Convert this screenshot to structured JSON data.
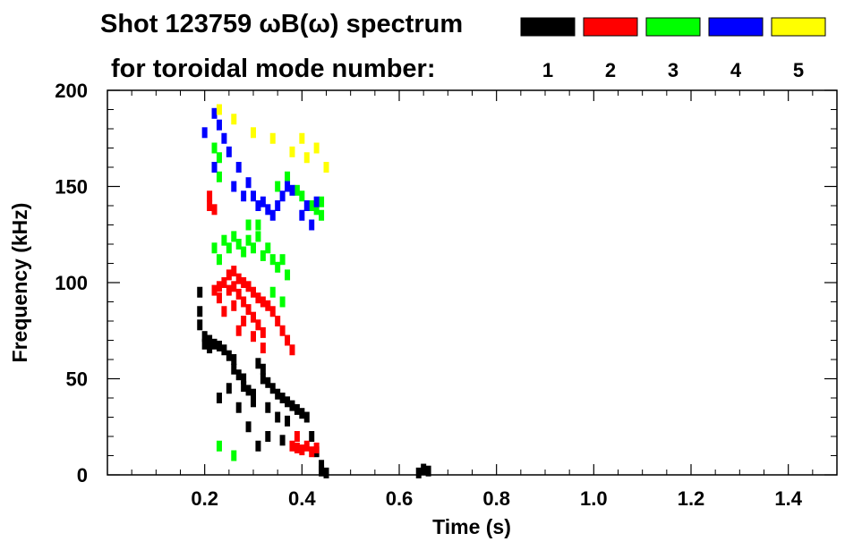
{
  "chart_data": {
    "type": "heatmap",
    "title": "Shot 123759 ωB(ω) spectrum",
    "subtitle": "for toroidal mode number:",
    "xlabel": "Time (s)",
    "ylabel": "Frequency (kHz)",
    "xlim": [
      0.0,
      1.5
    ],
    "ylim": [
      0,
      200
    ],
    "x_ticks": [
      "0.2",
      "0.4",
      "0.6",
      "0.8",
      "1.0",
      "1.2",
      "1.4"
    ],
    "x_tick_values": [
      0.2,
      0.4,
      0.6,
      0.8,
      1.0,
      1.2,
      1.4
    ],
    "y_ticks": [
      "0",
      "50",
      "100",
      "150",
      "200"
    ],
    "y_tick_values": [
      0,
      50,
      100,
      150,
      200
    ],
    "legend_placement": "top",
    "grid": false,
    "series": [
      {
        "name": "1",
        "color": "#000000",
        "points": [
          [
            0.19,
            95
          ],
          [
            0.19,
            85
          ],
          [
            0.19,
            78
          ],
          [
            0.2,
            72
          ],
          [
            0.2,
            68
          ],
          [
            0.21,
            70
          ],
          [
            0.21,
            66
          ],
          [
            0.22,
            68
          ],
          [
            0.23,
            67
          ],
          [
            0.24,
            65
          ],
          [
            0.25,
            62
          ],
          [
            0.26,
            60
          ],
          [
            0.26,
            55
          ],
          [
            0.27,
            52
          ],
          [
            0.28,
            50
          ],
          [
            0.28,
            46
          ],
          [
            0.29,
            44
          ],
          [
            0.3,
            42
          ],
          [
            0.3,
            38
          ],
          [
            0.31,
            58
          ],
          [
            0.32,
            55
          ],
          [
            0.32,
            50
          ],
          [
            0.33,
            48
          ],
          [
            0.33,
            35
          ],
          [
            0.34,
            45
          ],
          [
            0.35,
            42
          ],
          [
            0.35,
            30
          ],
          [
            0.36,
            40
          ],
          [
            0.37,
            38
          ],
          [
            0.37,
            28
          ],
          [
            0.38,
            36
          ],
          [
            0.39,
            34
          ],
          [
            0.4,
            32
          ],
          [
            0.41,
            30
          ],
          [
            0.42,
            20
          ],
          [
            0.43,
            12
          ],
          [
            0.44,
            5
          ],
          [
            0.44,
            2
          ],
          [
            0.45,
            1
          ],
          [
            0.23,
            40
          ],
          [
            0.25,
            45
          ],
          [
            0.27,
            35
          ],
          [
            0.29,
            25
          ],
          [
            0.31,
            15
          ],
          [
            0.33,
            20
          ],
          [
            0.36,
            18
          ],
          [
            0.65,
            3
          ],
          [
            0.66,
            2
          ],
          [
            0.64,
            1
          ]
        ]
      },
      {
        "name": "2",
        "color": "#ff0000",
        "points": [
          [
            0.21,
            145
          ],
          [
            0.21,
            140
          ],
          [
            0.22,
            138
          ],
          [
            0.22,
            96
          ],
          [
            0.23,
            98
          ],
          [
            0.23,
            92
          ],
          [
            0.24,
            100
          ],
          [
            0.25,
            104
          ],
          [
            0.25,
            96
          ],
          [
            0.26,
            106
          ],
          [
            0.26,
            98
          ],
          [
            0.27,
            102
          ],
          [
            0.27,
            94
          ],
          [
            0.28,
            100
          ],
          [
            0.28,
            90
          ],
          [
            0.29,
            98
          ],
          [
            0.29,
            86
          ],
          [
            0.3,
            95
          ],
          [
            0.3,
            82
          ],
          [
            0.31,
            92
          ],
          [
            0.31,
            78
          ],
          [
            0.32,
            90
          ],
          [
            0.32,
            74
          ],
          [
            0.33,
            88
          ],
          [
            0.34,
            85
          ],
          [
            0.35,
            80
          ],
          [
            0.36,
            75
          ],
          [
            0.37,
            70
          ],
          [
            0.38,
            65
          ],
          [
            0.38,
            15
          ],
          [
            0.39,
            14
          ],
          [
            0.4,
            13
          ],
          [
            0.41,
            15
          ],
          [
            0.42,
            12
          ],
          [
            0.43,
            14
          ],
          [
            0.39,
            20
          ],
          [
            0.24,
            85
          ],
          [
            0.26,
            88
          ],
          [
            0.28,
            80
          ],
          [
            0.3,
            72
          ],
          [
            0.32,
            66
          ],
          [
            0.27,
            75
          ]
        ]
      },
      {
        "name": "3",
        "color": "#00ff00",
        "points": [
          [
            0.22,
            170
          ],
          [
            0.22,
            160
          ],
          [
            0.23,
            165
          ],
          [
            0.23,
            155
          ],
          [
            0.22,
            118
          ],
          [
            0.23,
            112
          ],
          [
            0.24,
            122
          ],
          [
            0.25,
            118
          ],
          [
            0.26,
            124
          ],
          [
            0.27,
            120
          ],
          [
            0.28,
            116
          ],
          [
            0.29,
            122
          ],
          [
            0.3,
            118
          ],
          [
            0.31,
            124
          ],
          [
            0.32,
            114
          ],
          [
            0.33,
            118
          ],
          [
            0.34,
            112
          ],
          [
            0.35,
            108
          ],
          [
            0.36,
            112
          ],
          [
            0.37,
            104
          ],
          [
            0.39,
            148
          ],
          [
            0.4,
            145
          ],
          [
            0.42,
            140
          ],
          [
            0.43,
            138
          ],
          [
            0.44,
            142
          ],
          [
            0.44,
            135
          ],
          [
            0.35,
            150
          ],
          [
            0.37,
            155
          ],
          [
            0.34,
            95
          ],
          [
            0.36,
            90
          ],
          [
            0.23,
            15
          ],
          [
            0.26,
            10
          ],
          [
            0.29,
            130
          ],
          [
            0.31,
            130
          ]
        ]
      },
      {
        "name": "4",
        "color": "#0000ff",
        "points": [
          [
            0.2,
            178
          ],
          [
            0.22,
            188
          ],
          [
            0.23,
            182
          ],
          [
            0.24,
            175
          ],
          [
            0.25,
            168
          ],
          [
            0.27,
            160
          ],
          [
            0.29,
            152
          ],
          [
            0.3,
            145
          ],
          [
            0.31,
            140
          ],
          [
            0.32,
            142
          ],
          [
            0.33,
            138
          ],
          [
            0.34,
            135
          ],
          [
            0.35,
            140
          ],
          [
            0.36,
            145
          ],
          [
            0.37,
            150
          ],
          [
            0.38,
            148
          ],
          [
            0.4,
            135
          ],
          [
            0.41,
            140
          ],
          [
            0.42,
            130
          ],
          [
            0.43,
            142
          ],
          [
            0.22,
            160
          ],
          [
            0.26,
            150
          ],
          [
            0.28,
            145
          ]
        ]
      },
      {
        "name": "5",
        "color": "#ffff00",
        "points": [
          [
            0.23,
            190
          ],
          [
            0.26,
            185
          ],
          [
            0.3,
            178
          ],
          [
            0.34,
            175
          ],
          [
            0.38,
            168
          ],
          [
            0.41,
            165
          ],
          [
            0.43,
            170
          ],
          [
            0.45,
            160
          ],
          [
            0.4,
            175
          ]
        ]
      }
    ]
  }
}
